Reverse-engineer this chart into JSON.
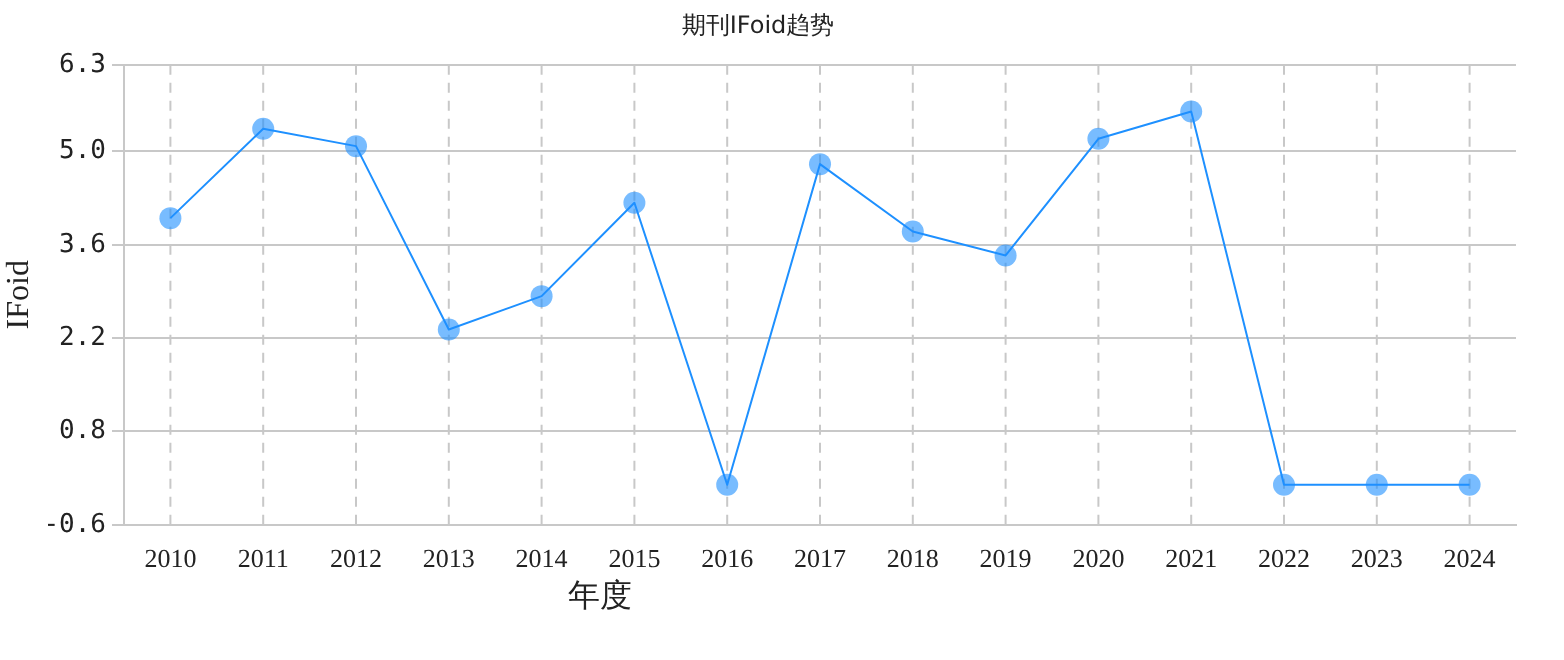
{
  "chart_data": {
    "type": "line",
    "title": "期刊IFoid趋势",
    "xlabel": "年度",
    "ylabel": "IFoid",
    "categories": [
      "2010",
      "2011",
      "2012",
      "2013",
      "2014",
      "2015",
      "2016",
      "2017",
      "2018",
      "2019",
      "2020",
      "2021",
      "2022",
      "2023",
      "2024"
    ],
    "series": [
      {
        "color": "#1e90ff",
        "values": [
          4.0,
          5.34,
          5.08,
          2.33,
          2.83,
          4.23,
          0,
          4.81,
          3.8,
          3.44,
          5.19,
          5.6,
          0,
          0,
          0
        ]
      }
    ],
    "ylim": [
      -0.6,
      6.3
    ],
    "yticks": [
      -0.6,
      0.8,
      2.2,
      3.6,
      {
        "value": 5.0,
        "label": "5.0"
      },
      6.3
    ],
    "grid": true,
    "marker": "circle",
    "line_style": "solid",
    "legend": false
  }
}
